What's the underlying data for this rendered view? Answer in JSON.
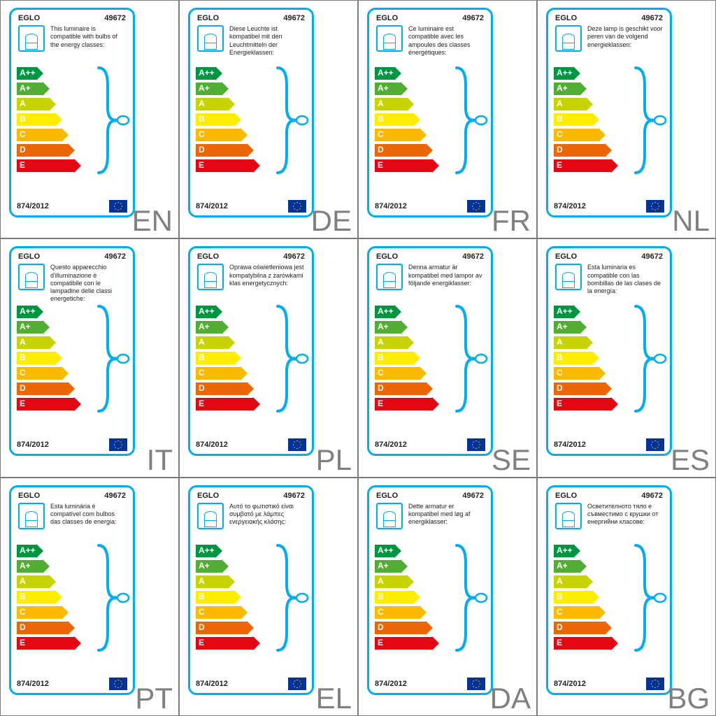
{
  "brand": "EGLO",
  "model": "49672",
  "regulation": "874/2012",
  "brace_color": "#00aeef",
  "border_color": "#00aeef",
  "lang_code_color": "#808080",
  "energy_classes": [
    {
      "label": "A++",
      "color": "#009640",
      "width": 28
    },
    {
      "label": "A+",
      "color": "#52ae32",
      "width": 37
    },
    {
      "label": "A",
      "color": "#c8d400",
      "width": 46
    },
    {
      "label": "B",
      "color": "#ffed00",
      "width": 55
    },
    {
      "label": "C",
      "color": "#fbba00",
      "width": 64
    },
    {
      "label": "D",
      "color": "#ec6608",
      "width": 73
    },
    {
      "label": "E",
      "color": "#e30613",
      "width": 82
    }
  ],
  "labels": [
    {
      "lang": "EN",
      "text": "This luminaire is compatible with bulbs of the energy classes:"
    },
    {
      "lang": "DE",
      "text": "Diese Leuchte ist kompatibel mit den Leuchtmitteln der Energieklassen:"
    },
    {
      "lang": "FR",
      "text": "Ce luminaire est compatible avec les ampoules des classes énergétiques:"
    },
    {
      "lang": "NL",
      "text": "Deze lamp is geschikt voor peren van de volgend energieklassen:"
    },
    {
      "lang": "IT",
      "text": "Questo apparecchio d'illuminazione è compatibile con le lampadine delle classi energetiche:"
    },
    {
      "lang": "PL",
      "text": "Oprawa oświetleniowa jest kompatybilna z żarówkami klas energetycznych:"
    },
    {
      "lang": "SE",
      "text": "Denna armatur är kompatibel med lampor av följande energiklasser:"
    },
    {
      "lang": "ES",
      "text": "Esta luminaria es compatible con las bombillas de las clases de la energía:"
    },
    {
      "lang": "PT",
      "text": "Esta luminária é compatível com bulbos das classes de energia:"
    },
    {
      "lang": "EL",
      "text": "Αυτό το φωτιστικό είναι συμβατό με λάμπες ενεργειακής κλάσης:"
    },
    {
      "lang": "DA",
      "text": "Dette armatur er kompatibel med løg af energiklasser:"
    },
    {
      "lang": "BG",
      "text": "Осветителното тяло е съвместимо с крушки от енергийни класове:"
    }
  ]
}
